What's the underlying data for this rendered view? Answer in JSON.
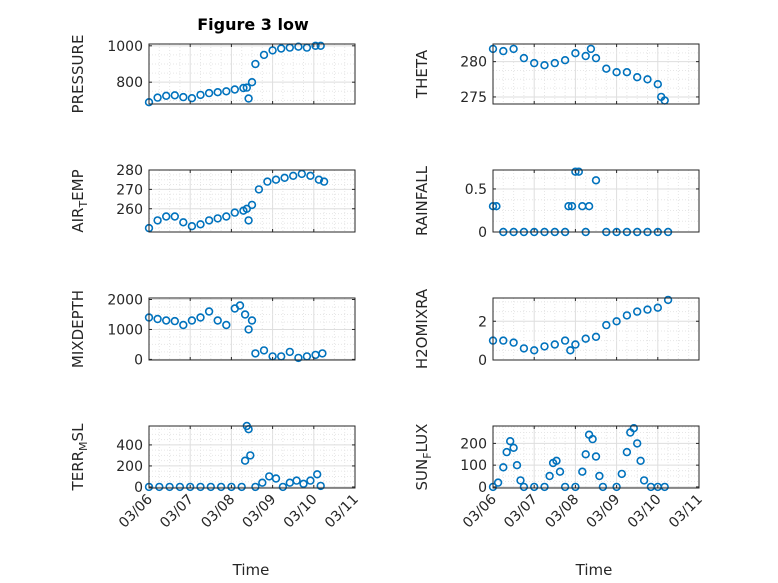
{
  "figure_title": "Figure 3 low",
  "marker_color": "#0072BD",
  "chart_data": [
    {
      "type": "scatter",
      "ylabel": "PRESSURE",
      "ylim": [
        680,
        1010
      ],
      "yticks": [
        800,
        1000
      ],
      "x": [
        "03/06 00:00",
        "03/06 05:00",
        "03/06 10:00",
        "03/06 15:00",
        "03/06 20:00",
        "03/07 01:00",
        "03/07 06:00",
        "03/07 11:00",
        "03/07 16:00",
        "03/07 21:00",
        "03/08 02:00",
        "03/08 07:00",
        "03/08 09:00",
        "03/08 10:00",
        "03/08 12:00",
        "03/08 14:00",
        "03/08 19:00",
        "03/09 00:00",
        "03/09 05:00",
        "03/09 10:00",
        "03/09 15:00",
        "03/09 20:00",
        "03/10 01:00",
        "03/10 04:00"
      ],
      "y": [
        690,
        715,
        725,
        728,
        718,
        712,
        730,
        740,
        745,
        750,
        760,
        768,
        770,
        710,
        800,
        900,
        950,
        975,
        985,
        990,
        995,
        990,
        1000,
        1000
      ]
    },
    {
      "type": "scatter",
      "ylabel": "THETA",
      "ylim": [
        274,
        282.5
      ],
      "yticks": [
        275,
        280
      ],
      "x": [
        "03/06 00:00",
        "03/06 06:00",
        "03/06 12:00",
        "03/06 18:00",
        "03/07 00:00",
        "03/07 06:00",
        "03/07 12:00",
        "03/07 18:00",
        "03/08 00:00",
        "03/08 06:00",
        "03/08 09:00",
        "03/08 12:00",
        "03/08 18:00",
        "03/09 00:00",
        "03/09 06:00",
        "03/09 12:00",
        "03/09 18:00",
        "03/10 00:00",
        "03/10 02:00",
        "03/10 04:00"
      ],
      "y": [
        281.8,
        281.5,
        281.8,
        280.5,
        279.8,
        279.5,
        279.8,
        280.2,
        281.2,
        280.8,
        281.8,
        280.5,
        279.0,
        278.5,
        278.5,
        277.8,
        277.5,
        276.8,
        275.0,
        274.5
      ]
    },
    {
      "type": "scatter",
      "ylabel": "AIR_TEMP",
      "ylim": [
        248,
        280
      ],
      "yticks": [
        260,
        270,
        280
      ],
      "x": [
        "03/06 00:00",
        "03/06 05:00",
        "03/06 10:00",
        "03/06 15:00",
        "03/06 20:00",
        "03/07 01:00",
        "03/07 06:00",
        "03/07 11:00",
        "03/07 16:00",
        "03/07 21:00",
        "03/08 02:00",
        "03/08 07:00",
        "03/08 09:00",
        "03/08 10:00",
        "03/08 12:00",
        "03/08 16:00",
        "03/08 21:00",
        "03/09 02:00",
        "03/09 07:00",
        "03/09 12:00",
        "03/09 17:00",
        "03/09 22:00",
        "03/10 03:00",
        "03/10 06:00"
      ],
      "y": [
        250,
        254,
        256,
        256,
        253,
        251,
        252,
        254,
        255,
        256,
        258,
        259,
        260,
        254,
        262,
        270,
        274,
        275,
        276,
        277,
        278,
        277,
        275,
        274
      ]
    },
    {
      "type": "scatter",
      "ylabel": "RAINFALL",
      "ylim": [
        0,
        0.72
      ],
      "yticks": [
        0,
        0.5
      ],
      "x": [
        "03/06 00:00",
        "03/06 02:00",
        "03/06 06:00",
        "03/06 12:00",
        "03/06 18:00",
        "03/07 00:00",
        "03/07 06:00",
        "03/07 12:00",
        "03/07 18:00",
        "03/07 20:00",
        "03/07 22:00",
        "03/08 00:00",
        "03/08 02:00",
        "03/08 04:00",
        "03/08 06:00",
        "03/08 08:00",
        "03/08 12:00",
        "03/08 18:00",
        "03/09 00:00",
        "03/09 06:00",
        "03/09 12:00",
        "03/09 18:00",
        "03/10 00:00",
        "03/10 06:00"
      ],
      "y": [
        0.3,
        0.3,
        0,
        0,
        0,
        0,
        0,
        0,
        0,
        0.3,
        0.3,
        0.7,
        0.7,
        0.3,
        0,
        0.3,
        0.6,
        0,
        0,
        0,
        0,
        0,
        0,
        0
      ]
    },
    {
      "type": "scatter",
      "ylabel": "MIXDEPTH",
      "ylim": [
        -20,
        2050
      ],
      "yticks": [
        0,
        1000,
        2000
      ],
      "x": [
        "03/06 00:00",
        "03/06 05:00",
        "03/06 10:00",
        "03/06 15:00",
        "03/06 20:00",
        "03/07 01:00",
        "03/07 06:00",
        "03/07 11:00",
        "03/07 16:00",
        "03/07 21:00",
        "03/08 02:00",
        "03/08 05:00",
        "03/08 08:00",
        "03/08 10:00",
        "03/08 12:00",
        "03/08 14:00",
        "03/08 19:00",
        "03/09 00:00",
        "03/09 05:00",
        "03/09 10:00",
        "03/09 15:00",
        "03/09 20:00",
        "03/10 01:00",
        "03/10 05:00"
      ],
      "y": [
        1400,
        1350,
        1300,
        1280,
        1150,
        1300,
        1400,
        1600,
        1300,
        1150,
        1700,
        1800,
        1500,
        1000,
        1300,
        200,
        300,
        100,
        100,
        250,
        50,
        100,
        150,
        200
      ]
    },
    {
      "type": "scatter",
      "ylabel": "H2OMIXRA",
      "ylim": [
        0,
        3.2
      ],
      "yticks": [
        0,
        2
      ],
      "x": [
        "03/06 00:00",
        "03/06 06:00",
        "03/06 12:00",
        "03/06 18:00",
        "03/07 00:00",
        "03/07 06:00",
        "03/07 12:00",
        "03/07 18:00",
        "03/07 21:00",
        "03/08 00:00",
        "03/08 06:00",
        "03/08 12:00",
        "03/08 18:00",
        "03/09 00:00",
        "03/09 06:00",
        "03/09 12:00",
        "03/09 18:00",
        "03/10 00:00",
        "03/10 06:00"
      ],
      "y": [
        1.0,
        1.0,
        0.9,
        0.6,
        0.5,
        0.7,
        0.8,
        1.0,
        0.5,
        0.8,
        1.1,
        1.2,
        1.8,
        2.0,
        2.3,
        2.5,
        2.6,
        2.7,
        3.1
      ]
    },
    {
      "type": "scatter",
      "ylabel": "TERR_MSL",
      "ylim": [
        -10,
        580
      ],
      "yticks": [
        0,
        200,
        400
      ],
      "x": [
        "03/06 00:00",
        "03/06 06:00",
        "03/06 12:00",
        "03/06 18:00",
        "03/07 00:00",
        "03/07 06:00",
        "03/07 12:00",
        "03/07 18:00",
        "03/08 00:00",
        "03/08 06:00",
        "03/08 08:00",
        "03/08 09:00",
        "03/08 10:00",
        "03/08 11:00",
        "03/08 14:00",
        "03/08 18:00",
        "03/08 22:00",
        "03/09 02:00",
        "03/09 06:00",
        "03/09 10:00",
        "03/09 14:00",
        "03/09 18:00",
        "03/09 22:00",
        "03/10 02:00",
        "03/10 04:00"
      ],
      "y": [
        0,
        0,
        0,
        0,
        0,
        0,
        0,
        0,
        0,
        0,
        250,
        580,
        550,
        300,
        0,
        40,
        100,
        80,
        0,
        40,
        60,
        30,
        60,
        120,
        10
      ]
    },
    {
      "type": "scatter",
      "ylabel": "SUN_FLUX",
      "ylim": [
        -5,
        280
      ],
      "yticks": [
        0,
        100,
        200
      ],
      "x": [
        "03/06 00:00",
        "03/06 03:00",
        "03/06 06:00",
        "03/06 08:00",
        "03/06 10:00",
        "03/06 12:00",
        "03/06 14:00",
        "03/06 16:00",
        "03/06 18:00",
        "03/07 00:00",
        "03/07 06:00",
        "03/07 09:00",
        "03/07 11:00",
        "03/07 13:00",
        "03/07 15:00",
        "03/07 18:00",
        "03/08 00:00",
        "03/08 04:00",
        "03/08 06:00",
        "03/08 08:00",
        "03/08 10:00",
        "03/08 12:00",
        "03/08 14:00",
        "03/08 16:00",
        "03/09 00:00",
        "03/09 03:00",
        "03/09 06:00",
        "03/09 08:00",
        "03/09 10:00",
        "03/09 12:00",
        "03/09 14:00",
        "03/09 16:00",
        "03/09 20:00",
        "03/10 00:00",
        "03/10 04:00"
      ],
      "y": [
        0,
        20,
        90,
        160,
        210,
        180,
        100,
        30,
        0,
        0,
        0,
        50,
        110,
        120,
        70,
        0,
        0,
        70,
        150,
        240,
        220,
        140,
        50,
        0,
        0,
        60,
        160,
        250,
        270,
        200,
        120,
        30,
        0,
        0,
        0
      ]
    }
  ],
  "x_axis": {
    "tick_labels": [
      "03/06",
      "03/07",
      "03/08",
      "03/09",
      "03/10",
      "03/11"
    ],
    "label": "Time"
  }
}
